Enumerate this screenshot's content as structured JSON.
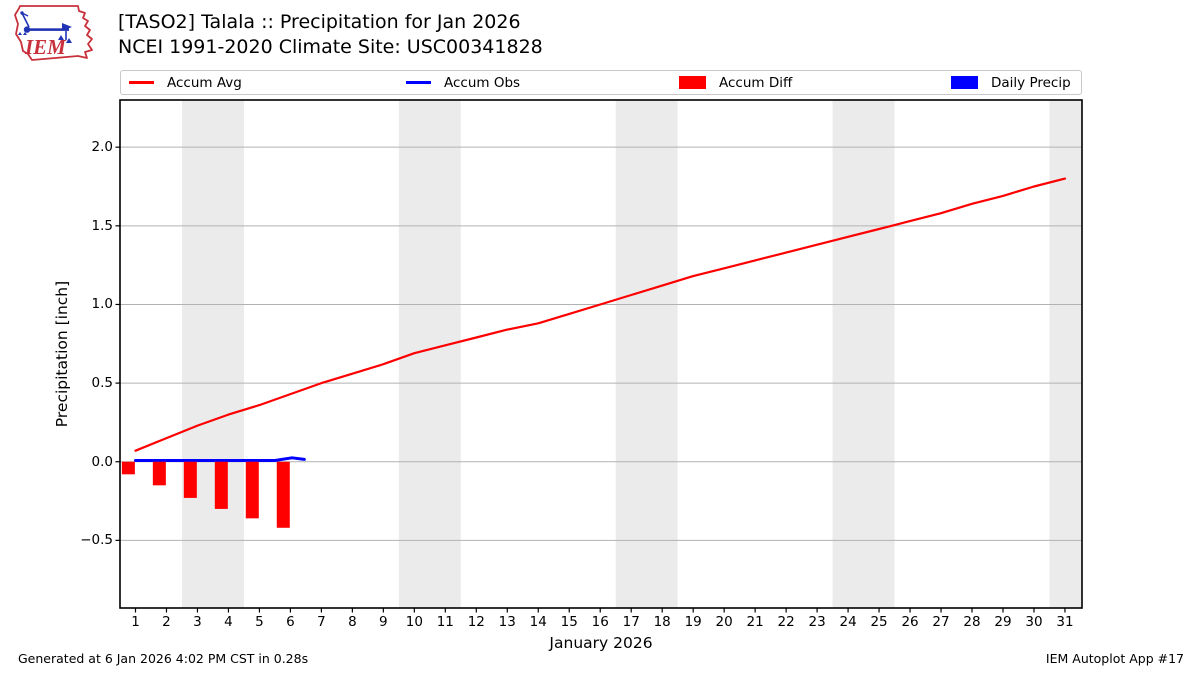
{
  "header": {
    "title_line1": "[TASO2] Talala :: Precipitation for Jan 2026",
    "title_line2": "NCEI 1991-2020 Climate Site: USC00341828",
    "logo_text": "IEM"
  },
  "legend": {
    "items": [
      {
        "label": "Accum Avg",
        "swatch": "line",
        "color": "#ff0000"
      },
      {
        "label": "Accum Obs",
        "swatch": "line",
        "color": "#0000ff"
      },
      {
        "label": "Accum Diff",
        "swatch": "box",
        "color": "#ff0000"
      },
      {
        "label": "Daily Precip",
        "swatch": "box",
        "color": "#0000ff"
      }
    ]
  },
  "footer": {
    "left": "Generated at 6 Jan 2026 4:02 PM CST in 0.28s",
    "right": "IEM Autoplot App #17"
  },
  "colors": {
    "accum_avg": "#ff0000",
    "accum_obs": "#0000ff",
    "accum_diff": "#ff0000",
    "daily_precip": "#0000ff",
    "weekend_band": "#ebebeb",
    "gridline": "#b2b2b2",
    "axis": "#000000",
    "logo_red": "#c8313c",
    "logo_blue": "#2134b4"
  },
  "chart_data": {
    "type": "line",
    "title": "[TASO2] Talala :: Precipitation for Jan 2026",
    "subtitle": "NCEI 1991-2020 Climate Site: USC00341828",
    "xlabel": "January 2026",
    "ylabel": "Precipitation [inch]",
    "xlim": [
      0.5,
      31.55
    ],
    "ylim": [
      -0.93,
      2.3
    ],
    "grid": "horizontal-only",
    "legend_position": "top",
    "yticks": [
      2.0,
      1.5,
      1.0,
      0.5,
      0.0,
      -0.5
    ],
    "ytick_labels": [
      "2.0",
      "1.5",
      "1.0",
      "0.5",
      "0.0",
      "−0.5"
    ],
    "xticks": [
      1,
      2,
      3,
      4,
      5,
      6,
      7,
      8,
      9,
      10,
      11,
      12,
      13,
      14,
      15,
      16,
      17,
      18,
      19,
      20,
      21,
      22,
      23,
      24,
      25,
      26,
      27,
      28,
      29,
      30,
      31
    ],
    "xtick_labels": [
      "1",
      "2",
      "3",
      "4",
      "5",
      "6",
      "7",
      "8",
      "9",
      "10",
      "11",
      "12",
      "13",
      "14",
      "15",
      "16",
      "17",
      "18",
      "19",
      "20",
      "21",
      "22",
      "23",
      "24",
      "25",
      "26",
      "27",
      "28",
      "29",
      "30",
      "31"
    ],
    "weekend_bands": [
      [
        2.5,
        4.5
      ],
      [
        9.5,
        11.5
      ],
      [
        16.5,
        18.5
      ],
      [
        23.5,
        25.5
      ],
      [
        30.5,
        31.55
      ]
    ],
    "bar_width_days": 0.42,
    "bar_center_offset_days": -0.23,
    "series": [
      {
        "name": "Accum Avg",
        "type": "line",
        "color": "#ff0000",
        "stroke_width": 2.2,
        "x": [
          1,
          2,
          3,
          4,
          5,
          6,
          7,
          8,
          9,
          10,
          11,
          12,
          13,
          14,
          15,
          16,
          17,
          18,
          19,
          20,
          21,
          22,
          23,
          24,
          25,
          26,
          27,
          28,
          29,
          30,
          31
        ],
        "y": [
          0.07,
          0.15,
          0.23,
          0.3,
          0.36,
          0.43,
          0.5,
          0.56,
          0.62,
          0.69,
          0.74,
          0.79,
          0.84,
          0.88,
          0.94,
          1.0,
          1.06,
          1.12,
          1.18,
          1.23,
          1.28,
          1.33,
          1.38,
          1.43,
          1.48,
          1.53,
          1.58,
          1.64,
          1.69,
          1.75,
          1.8
        ]
      },
      {
        "name": "Accum Obs",
        "type": "line",
        "color": "#0000ff",
        "stroke_width": 3,
        "x": [
          1,
          5.5,
          6.05,
          6.45
        ],
        "y": [
          0.008,
          0.008,
          0.025,
          0.015
        ]
      },
      {
        "name": "Accum Diff",
        "type": "bar",
        "color": "#ff0000",
        "x": [
          1,
          2,
          3,
          4,
          5,
          6
        ],
        "y": [
          -0.08,
          -0.15,
          -0.23,
          -0.3,
          -0.36,
          -0.42
        ]
      },
      {
        "name": "Daily Precip",
        "type": "bar",
        "color": "#0000ff",
        "x": [],
        "y": []
      }
    ]
  }
}
